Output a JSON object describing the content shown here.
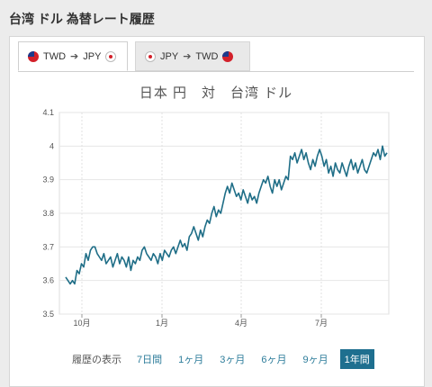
{
  "page": {
    "title": "台湾 ドル 為替レート履歴"
  },
  "tabs": [
    {
      "from": "TWD",
      "to": "JPY",
      "active": true
    },
    {
      "from": "JPY",
      "to": "TWD",
      "active": false
    }
  ],
  "tab_arrow": "➔",
  "colors": {
    "line": "#1f6e87",
    "grid": "#e6e6e6",
    "accent": "#1e6f8f"
  },
  "range": {
    "label": "履歴の表示",
    "options": [
      "7日間",
      "1ヶ月",
      "3ヶ月",
      "6ヶ月",
      "9ヶ月",
      "1年間"
    ],
    "selected": "1年間"
  },
  "chart_data": {
    "type": "line",
    "title": "日本 円　対　台湾 ドル",
    "xlabel": "",
    "ylabel": "",
    "ylim": [
      3.5,
      4.1
    ],
    "yticks": [
      3.5,
      3.6,
      3.7,
      3.8,
      3.9,
      4,
      4.1
    ],
    "xticks": [
      "10月",
      "1月",
      "4月",
      "7月"
    ],
    "grid": true,
    "series": [
      {
        "values": [
          3.61,
          3.6,
          3.59,
          3.6,
          3.59,
          3.63,
          3.62,
          3.65,
          3.64,
          3.68,
          3.66,
          3.69,
          3.7,
          3.7,
          3.68,
          3.67,
          3.66,
          3.68,
          3.65,
          3.66,
          3.67,
          3.64,
          3.66,
          3.68,
          3.65,
          3.67,
          3.66,
          3.64,
          3.67,
          3.63,
          3.66,
          3.65,
          3.67,
          3.66,
          3.69,
          3.7,
          3.68,
          3.67,
          3.66,
          3.68,
          3.67,
          3.65,
          3.68,
          3.66,
          3.69,
          3.68,
          3.67,
          3.69,
          3.7,
          3.68,
          3.7,
          3.72,
          3.7,
          3.71,
          3.69,
          3.73,
          3.74,
          3.76,
          3.74,
          3.72,
          3.75,
          3.73,
          3.76,
          3.78,
          3.77,
          3.8,
          3.82,
          3.79,
          3.81,
          3.8,
          3.83,
          3.86,
          3.88,
          3.86,
          3.89,
          3.87,
          3.85,
          3.86,
          3.84,
          3.87,
          3.85,
          3.83,
          3.86,
          3.84,
          3.85,
          3.83,
          3.86,
          3.88,
          3.9,
          3.89,
          3.91,
          3.88,
          3.86,
          3.9,
          3.88,
          3.9,
          3.87,
          3.89,
          3.91,
          3.9,
          3.97,
          3.96,
          3.98,
          3.95,
          3.97,
          3.99,
          3.96,
          3.98,
          3.95,
          3.93,
          3.96,
          3.94,
          3.97,
          3.99,
          3.97,
          3.94,
          3.96,
          3.92,
          3.94,
          3.91,
          3.95,
          3.93,
          3.92,
          3.95,
          3.93,
          3.91,
          3.94,
          3.96,
          3.93,
          3.95,
          3.92,
          3.94,
          3.96,
          3.93,
          3.92,
          3.94,
          3.96,
          3.98,
          3.97,
          3.99,
          3.96,
          4.0,
          3.97,
          3.98
        ]
      }
    ]
  }
}
